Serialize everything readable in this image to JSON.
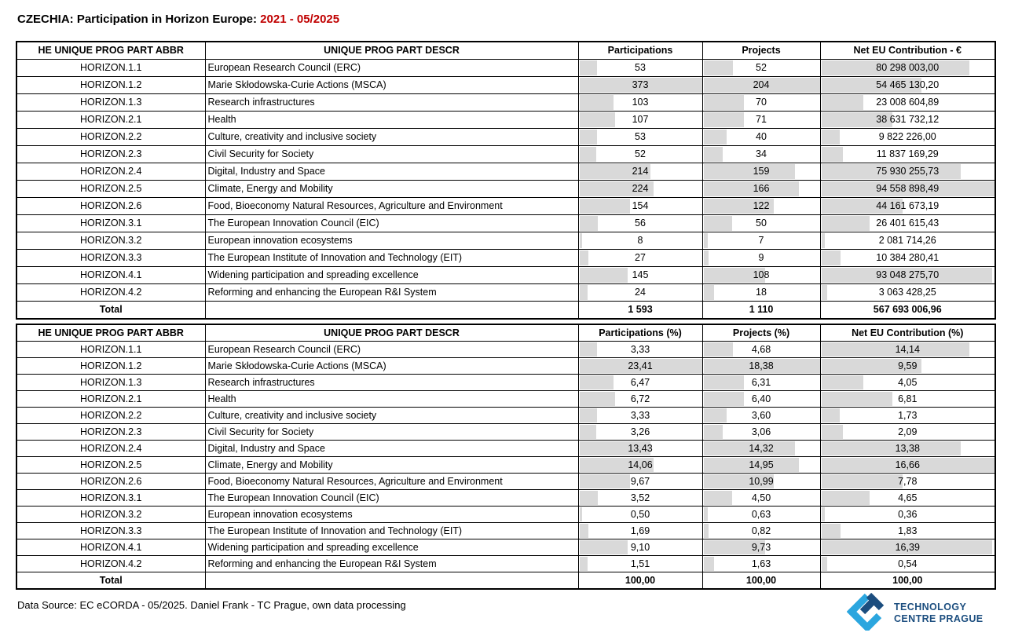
{
  "title": {
    "prefix": "CZECHIA: Participation in Horizon Europe: ",
    "period": "2021 - 05/2025"
  },
  "colors": {
    "period_red": "#C00000",
    "bar_gray": "#D9D9D9",
    "border_black": "#000000",
    "logo_light_blue": "#2BA6DF",
    "logo_dark_blue": "#1C4E7F"
  },
  "table_abs": {
    "headers": [
      "HE UNIQUE PROG PART ABBR",
      "UNIQUE PROG PART DESCR",
      "Participations",
      "Projects",
      "Net EU Contribution - €"
    ],
    "rows": [
      {
        "abbr": "HORIZON.1.1",
        "descr": "European Research Council (ERC)",
        "values": [
          "53",
          "52",
          "80 298 003,00"
        ]
      },
      {
        "abbr": "HORIZON.1.2",
        "descr": "Marie Skłodowska-Curie Actions (MSCA)",
        "values": [
          "373",
          "204",
          "54 465 130,20"
        ]
      },
      {
        "abbr": "HORIZON.1.3",
        "descr": "Research infrastructures",
        "values": [
          "103",
          "70",
          "23 008 604,89"
        ]
      },
      {
        "abbr": "HORIZON.2.1",
        "descr": "Health",
        "values": [
          "107",
          "71",
          "38 631 732,12"
        ]
      },
      {
        "abbr": "HORIZON.2.2",
        "descr": "Culture, creativity and inclusive society",
        "values": [
          "53",
          "40",
          "9 822 226,00"
        ]
      },
      {
        "abbr": "HORIZON.2.3",
        "descr": "Civil Security for Society",
        "values": [
          "52",
          "34",
          "11 837 169,29"
        ]
      },
      {
        "abbr": "HORIZON.2.4",
        "descr": "Digital, Industry and Space",
        "values": [
          "214",
          "159",
          "75 930 255,73"
        ]
      },
      {
        "abbr": "HORIZON.2.5",
        "descr": "Climate, Energy and Mobility",
        "values": [
          "224",
          "166",
          "94 558 898,49"
        ]
      },
      {
        "abbr": "HORIZON.2.6",
        "descr": "Food, Bioeconomy Natural Resources, Agriculture and Environment",
        "values": [
          "154",
          "122",
          "44 161 673,19"
        ]
      },
      {
        "abbr": "HORIZON.3.1",
        "descr": "The European Innovation Council (EIC)",
        "values": [
          "56",
          "50",
          "26 401 615,43"
        ]
      },
      {
        "abbr": "HORIZON.3.2",
        "descr": "European innovation ecosystems",
        "values": [
          "8",
          "7",
          "2 081 714,26"
        ]
      },
      {
        "abbr": "HORIZON.3.3",
        "descr": "The European Institute of Innovation and Technology (EIT)",
        "values": [
          "27",
          "9",
          "10 384 280,41"
        ]
      },
      {
        "abbr": "HORIZON.4.1",
        "descr": "Widening participation and spreading excellence",
        "values": [
          "145",
          "108",
          "93 048 275,70"
        ]
      },
      {
        "abbr": "HORIZON.4.2",
        "descr": "Reforming and enhancing the European R&I System",
        "values": [
          "24",
          "18",
          "3 063 428,25"
        ]
      }
    ],
    "total": {
      "label": "Total",
      "values": [
        "1 593",
        "1 110",
        "567 693 006,96"
      ]
    }
  },
  "table_pct": {
    "headers": [
      "HE UNIQUE PROG PART ABBR",
      "UNIQUE PROG PART DESCR",
      "Participations (%)",
      "Projects (%)",
      "Net EU Contribution (%)"
    ],
    "rows": [
      {
        "abbr": "HORIZON.1.1",
        "descr": "European Research Council (ERC)",
        "values": [
          "3,33",
          "4,68",
          "14,14"
        ]
      },
      {
        "abbr": "HORIZON.1.2",
        "descr": "Marie Skłodowska-Curie Actions (MSCA)",
        "values": [
          "23,41",
          "18,38",
          "9,59"
        ]
      },
      {
        "abbr": "HORIZON.1.3",
        "descr": "Research infrastructures",
        "values": [
          "6,47",
          "6,31",
          "4,05"
        ]
      },
      {
        "abbr": "HORIZON.2.1",
        "descr": "Health",
        "values": [
          "6,72",
          "6,40",
          "6,81"
        ]
      },
      {
        "abbr": "HORIZON.2.2",
        "descr": "Culture, creativity and inclusive society",
        "values": [
          "3,33",
          "3,60",
          "1,73"
        ]
      },
      {
        "abbr": "HORIZON.2.3",
        "descr": "Civil Security for Society",
        "values": [
          "3,26",
          "3,06",
          "2,09"
        ]
      },
      {
        "abbr": "HORIZON.2.4",
        "descr": "Digital, Industry and Space",
        "values": [
          "13,43",
          "14,32",
          "13,38"
        ]
      },
      {
        "abbr": "HORIZON.2.5",
        "descr": "Climate, Energy and Mobility",
        "values": [
          "14,06",
          "14,95",
          "16,66"
        ]
      },
      {
        "abbr": "HORIZON.2.6",
        "descr": "Food, Bioeconomy Natural Resources, Agriculture and Environment",
        "values": [
          "9,67",
          "10,99",
          "7,78"
        ]
      },
      {
        "abbr": "HORIZON.3.1",
        "descr": "The European Innovation Council (EIC)",
        "values": [
          "3,52",
          "4,50",
          "4,65"
        ]
      },
      {
        "abbr": "HORIZON.3.2",
        "descr": "European innovation ecosystems",
        "values": [
          "0,50",
          "0,63",
          "0,36"
        ]
      },
      {
        "abbr": "HORIZON.3.3",
        "descr": "The European Institute of Innovation and Technology (EIT)",
        "values": [
          "1,69",
          "0,82",
          "1,83"
        ]
      },
      {
        "abbr": "HORIZON.4.1",
        "descr": "Widening participation and spreading excellence",
        "values": [
          "9,10",
          "9,73",
          "16,39"
        ]
      },
      {
        "abbr": "HORIZON.4.2",
        "descr": "Reforming and enhancing the European R&I System",
        "values": [
          "1,51",
          "1,63",
          "0,54"
        ]
      }
    ],
    "total": {
      "label": "Total",
      "values": [
        "100,00",
        "100,00",
        "100,00"
      ]
    }
  },
  "footer": {
    "source": "Data Source: EC eCORDA - 05/2025. Daniel Frank - TC Prague, own data processing"
  },
  "logo": {
    "line1": "TECHNOLOGY",
    "line2": "CENTRE PRAGUE"
  }
}
